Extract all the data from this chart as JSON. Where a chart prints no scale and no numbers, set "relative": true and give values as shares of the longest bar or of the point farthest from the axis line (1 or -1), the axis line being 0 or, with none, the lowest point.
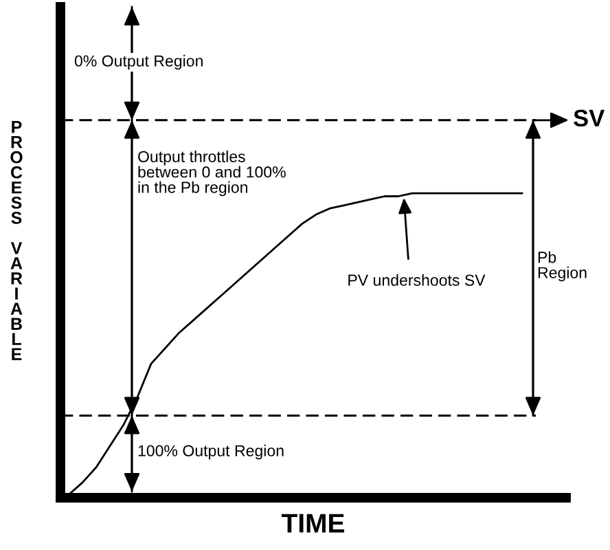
{
  "chart_data": {
    "type": "line",
    "relative": true,
    "xlabel": "TIME",
    "ylabel": "PROCESS VARIABLE",
    "categories": [
      null,
      null,
      null,
      null,
      null,
      null,
      null,
      null,
      null,
      null,
      null,
      null,
      null,
      null,
      null,
      null,
      null,
      null,
      null,
      null,
      null,
      null,
      null,
      null,
      null,
      null,
      null,
      null,
      null,
      null,
      null,
      null,
      null,
      null
    ],
    "series": [
      {
        "color": "#000000",
        "values": [
          0.01,
          0.05,
          0.1,
          0.17,
          0.24,
          0.33,
          0.44,
          0.49,
          0.54,
          0.58,
          0.62,
          0.66,
          0.7,
          0.74,
          0.78,
          0.82,
          0.86,
          0.9,
          0.93,
          0.95,
          0.96,
          0.97,
          0.98,
          0.99,
          0.99,
          1.0,
          1.0,
          1.0,
          1.0,
          1.0,
          1.0,
          1.0,
          1.0,
          1.0
        ]
      }
    ],
    "ref_lines": [
      {
        "axis": "y",
        "value": 1.24,
        "label": "SV",
        "color": "#000000",
        "line_style": "dashed"
      },
      {
        "axis": "y",
        "value": 0.27,
        "color": "#000000",
        "line_style": "dashed"
      }
    ],
    "annotations": [
      "0% Output Region",
      "Output throttles\nbetween 0 and 100%\nin the Pb region",
      "100% Output Region",
      "Pb\nRegion",
      "PV undershoots SV"
    ],
    "marker": "none",
    "line_style": "solid"
  }
}
